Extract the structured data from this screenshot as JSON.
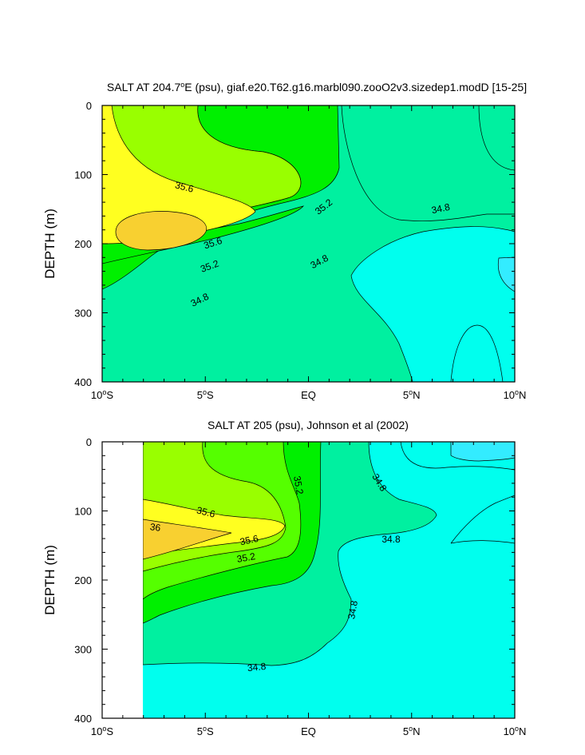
{
  "colors": {
    "yellow": "#ffff20",
    "orange": "#f8d030",
    "yellowgreen": "#99ff00",
    "lightgreen": "#55ff00",
    "green": "#00f000",
    "aquagreen": "#00f0a0",
    "cyan": "#00ffee",
    "lightblue": "#33ecff"
  },
  "chart_data": [
    {
      "type": "contour",
      "title_main": "SALT AT 204.7",
      "title_sup": "o",
      "title_rest": "E (psu), giaf.e20.T62.g16.marbl090.zooO2v3.sizedep1.modD [15-25]",
      "ylabel": "DEPTH (m)",
      "xlim": [
        -10,
        10
      ],
      "ylim": [
        400,
        0
      ],
      "x_ticks": [
        {
          "value": -10,
          "num": "10",
          "deg": "o",
          "hemi": "S"
        },
        {
          "value": -5,
          "num": "5",
          "deg": "o",
          "hemi": "S"
        },
        {
          "value": 0,
          "num": "EQ",
          "deg": "",
          "hemi": ""
        },
        {
          "value": 5,
          "num": "5",
          "deg": "o",
          "hemi": "N"
        },
        {
          "value": 10,
          "num": "10",
          "deg": "o",
          "hemi": "N"
        }
      ],
      "y_ticks": [
        "0",
        "100",
        "200",
        "300",
        "400"
      ],
      "contour_labels": [
        "35.6",
        "35.2",
        "34.8",
        "35.6",
        "35.2",
        "34.8",
        "34.8"
      ]
    },
    {
      "type": "contour",
      "title_main": "SALT AT 205 (psu), Johnson et al (2002)",
      "ylabel": "DEPTH (m)",
      "xlim": [
        -10,
        10
      ],
      "ylim": [
        400,
        0
      ],
      "data_x_start": -8,
      "x_ticks": [
        {
          "value": -10,
          "num": "10",
          "deg": "o",
          "hemi": "S"
        },
        {
          "value": -5,
          "num": "5",
          "deg": "o",
          "hemi": "S"
        },
        {
          "value": 0,
          "num": "EQ",
          "deg": "",
          "hemi": ""
        },
        {
          "value": 5,
          "num": "5",
          "deg": "o",
          "hemi": "N"
        },
        {
          "value": 10,
          "num": "10",
          "deg": "o",
          "hemi": "N"
        }
      ],
      "y_ticks": [
        "0",
        "100",
        "200",
        "300",
        "400"
      ],
      "contour_labels": [
        "35.2",
        "34.8",
        "35.6",
        "36",
        "35.6",
        "35.2",
        "34.8",
        "34.8",
        "34.8"
      ]
    }
  ]
}
